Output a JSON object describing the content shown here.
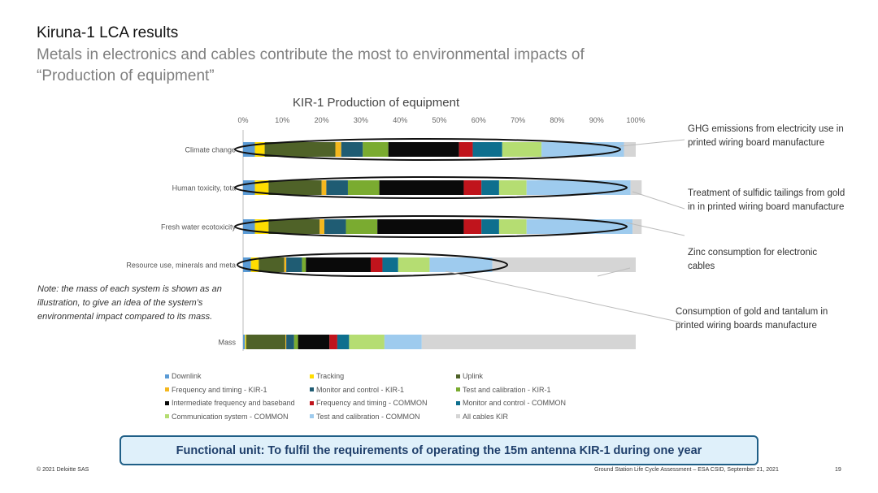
{
  "slide": {
    "title": "Kiruna-1 LCA results",
    "subtitle": "Metals in electronics and cables contribute the most to environmental impacts of “Production of equipment”",
    "note": "Note: the mass of each system is shown as an illustration, to give an idea of the system’s environmental impact compared to its mass.",
    "annotations": [
      "GHG emissions from electricity use in printed wiring board manufacture",
      "Treatment of sulfidic tailings from gold in in printed wiring board manufacture",
      "Zinc consumption for electronic cables",
      "Consumption of gold and tantalum in printed wiring boards manufacture"
    ],
    "functional_unit": "Functional unit: To fulfil the requirements of operating the 15m antenna KIR-1 during one year",
    "footer_left": "© 2021 Deloitte SAS",
    "footer_right": "Ground Station Life Cycle Assessment – ESA CSID, September 21, 2021",
    "page_number": "19"
  },
  "chart_data": {
    "type": "bar",
    "orientation": "horizontal",
    "stacked": true,
    "title": "KIR-1 Production of equipment",
    "xlim": [
      0,
      100
    ],
    "x_ticks": [
      "0%",
      "10%",
      "20%",
      "30%",
      "40%",
      "50%",
      "60%",
      "70%",
      "80%",
      "90%",
      "100%"
    ],
    "categories": [
      "Climate change",
      "Human toxicity, tota",
      "Fresh water ecotoxicity",
      "Resource use, minerals and meta",
      "Mass"
    ],
    "legend_position": "bottom",
    "series": [
      {
        "name": "Downlink",
        "color": "#5b9bd5",
        "values": [
          3,
          3,
          3,
          2,
          0.5
        ]
      },
      {
        "name": "Tracking",
        "color": "#ffdd00",
        "values": [
          2.5,
          3.5,
          3.5,
          2,
          0.3
        ]
      },
      {
        "name": "Uplink",
        "color": "#4f6228",
        "values": [
          18,
          13.5,
          13,
          6.5,
          10
        ]
      },
      {
        "name": "Frequency and timing - KIR-1",
        "color": "#f4b71e",
        "values": [
          1.5,
          1.2,
          1.2,
          0.5,
          0.2
        ]
      },
      {
        "name": "Monitor and control - KIR-1",
        "color": "#1f5c73",
        "values": [
          5.5,
          5.5,
          5.5,
          4,
          2
        ]
      },
      {
        "name": "Test and calibration - KIR-1",
        "color": "#7aab30",
        "values": [
          6.5,
          8,
          8,
          1,
          1
        ]
      },
      {
        "name": "Intermediate frequency and baseband",
        "color": "#0a0a0a",
        "values": [
          18,
          21.5,
          22,
          16.5,
          8
        ]
      },
      {
        "name": "Frequency and timing - COMMON",
        "color": "#c0141c",
        "values": [
          3.5,
          4.5,
          4.5,
          3,
          2
        ]
      },
      {
        "name": "Monitor and control - COMMON",
        "color": "#0e6f8e",
        "values": [
          7.5,
          4.5,
          4.5,
          4,
          3
        ]
      },
      {
        "name": "Communication system - COMMON",
        "color": "#b5dd72",
        "values": [
          10,
          7,
          7,
          8,
          9
        ]
      },
      {
        "name": "Test and calibration - COMMON",
        "color": "#9ecbee",
        "values": [
          21,
          26.5,
          27,
          16,
          9.5
        ]
      },
      {
        "name": "All cables KIR",
        "color": "#d5d5d5",
        "values": [
          3,
          2.8,
          2.3,
          36.5,
          54.5
        ]
      }
    ]
  }
}
